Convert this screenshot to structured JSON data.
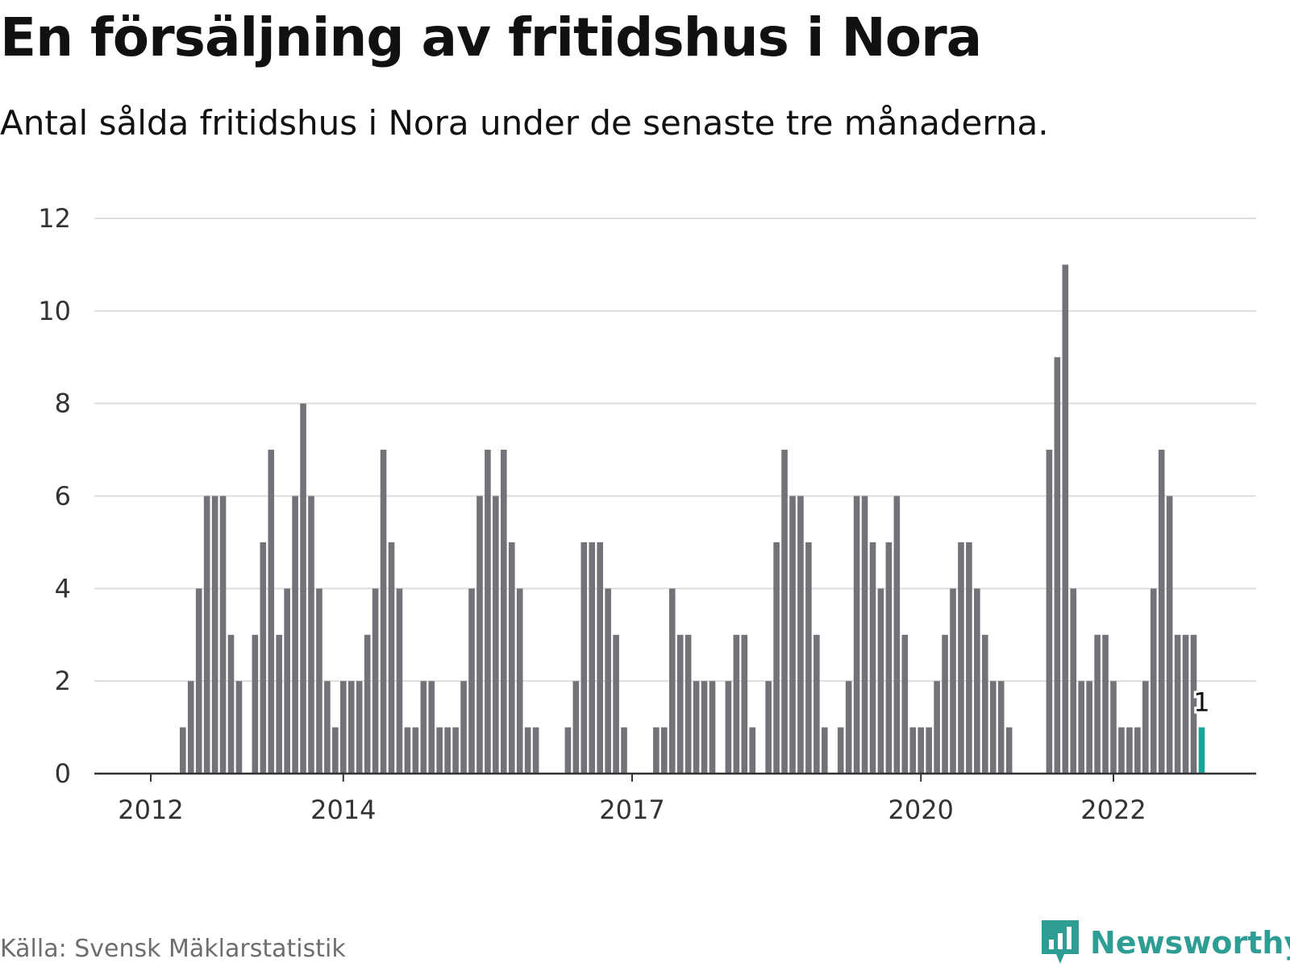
{
  "header": {
    "title": "En försäljning av fritidshus i Nora",
    "subtitle": "Antal sålda fritidshus i Nora under de senaste tre månaderna."
  },
  "footer": {
    "source": "Källa: Svensk Mäklarstatistik",
    "brand": "Newsworthy",
    "brand_icon": "newsworthy-logo-icon"
  },
  "colors": {
    "bar": "#737278",
    "highlight": "#1aa59a",
    "grid": "#dddddd",
    "axis": "#333333",
    "brand": "#2e9e94"
  },
  "chart_data": {
    "type": "bar",
    "title": "En försäljning av fritidshus i Nora",
    "subtitle": "Antal sålda fritidshus i Nora under de senaste tre månaderna.",
    "xlabel": "",
    "ylabel": "",
    "ylim": [
      0,
      12
    ],
    "yticks": [
      0,
      2,
      4,
      6,
      8,
      10,
      12
    ],
    "xticks": [
      {
        "label": "2012",
        "month": "2012-01"
      },
      {
        "label": "2014",
        "month": "2014-01"
      },
      {
        "label": "2017",
        "month": "2017-01"
      },
      {
        "label": "2020",
        "month": "2020-01"
      },
      {
        "label": "2022",
        "month": "2022-01"
      }
    ],
    "grid": true,
    "start_month": "2012-01",
    "values": [
      0,
      0,
      0,
      0,
      1,
      2,
      4,
      6,
      6,
      6,
      3,
      2,
      0,
      3,
      5,
      7,
      3,
      4,
      6,
      8,
      6,
      4,
      2,
      1,
      2,
      2,
      2,
      3,
      4,
      7,
      5,
      4,
      1,
      1,
      2,
      2,
      1,
      1,
      1,
      2,
      4,
      6,
      7,
      6,
      7,
      5,
      4,
      1,
      1,
      0,
      0,
      0,
      1,
      2,
      5,
      5,
      5,
      4,
      3,
      1,
      0,
      0,
      0,
      1,
      1,
      4,
      3,
      3,
      2,
      2,
      2,
      0,
      2,
      3,
      3,
      1,
      0,
      2,
      5,
      7,
      6,
      6,
      5,
      3,
      1,
      0,
      1,
      2,
      6,
      6,
      5,
      4,
      5,
      6,
      3,
      1,
      1,
      1,
      2,
      3,
      4,
      5,
      5,
      4,
      3,
      2,
      2,
      1,
      0,
      0,
      0,
      0,
      7,
      9,
      11,
      4,
      2,
      2,
      3,
      3,
      2,
      1,
      1,
      1,
      2,
      4,
      7,
      6,
      3,
      3,
      3,
      1
    ],
    "highlight_last": true,
    "last_value_label": "1"
  }
}
